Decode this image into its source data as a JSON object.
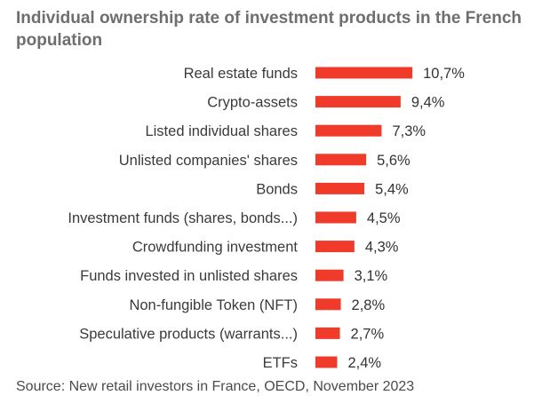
{
  "title": "Individual ownership rate of investment products in the French population",
  "source": "Source: New retail investors in France, OECD, November 2023",
  "colors": {
    "bar": "#f03a2a"
  },
  "chart_data": {
    "type": "bar",
    "orientation": "horizontal",
    "categories": [
      "Real estate funds",
      "Crypto-assets",
      "Listed individual shares",
      "Unlisted companies' shares",
      "Bonds",
      "Investment funds (shares, bonds...)",
      "Crowdfunding investment",
      "Funds invested in unlisted shares",
      "Non-fungible Token (NFT)",
      "Speculative products (warrants...)",
      "ETFs"
    ],
    "values": [
      10.7,
      9.4,
      7.3,
      5.6,
      5.4,
      4.5,
      4.3,
      3.1,
      2.8,
      2.7,
      2.4
    ],
    "value_labels": [
      "10,7%",
      "9,4%",
      "7,3%",
      "5,6%",
      "5,4%",
      "4,5%",
      "4,3%",
      "3,1%",
      "2,8%",
      "2,7%",
      "2,4%"
    ],
    "unit": "%",
    "grid": false,
    "legend": "none"
  }
}
